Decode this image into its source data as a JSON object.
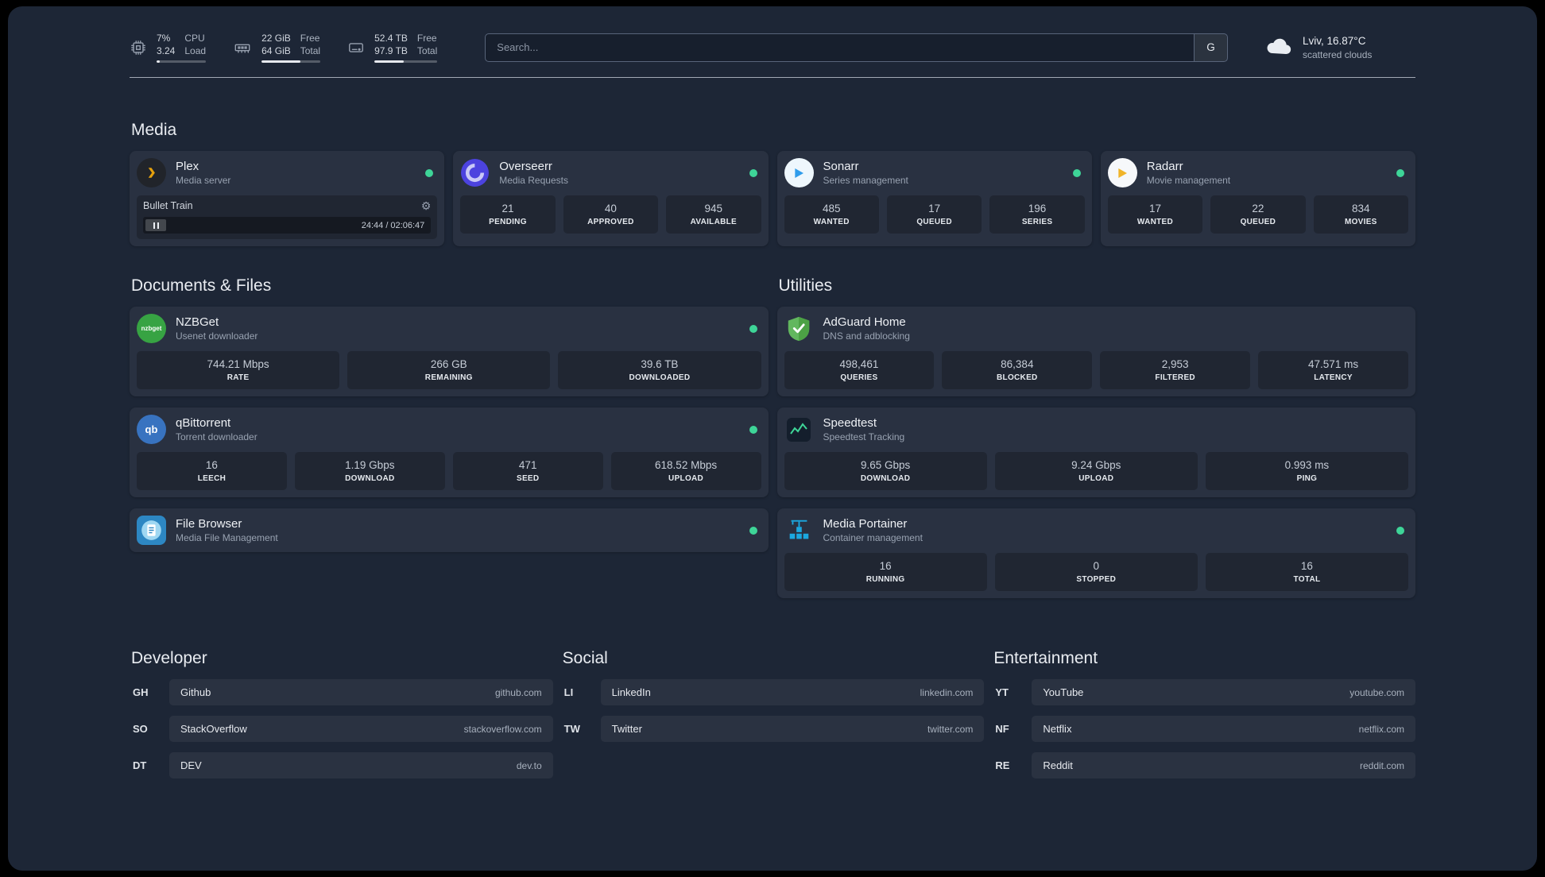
{
  "colors": {
    "status_green": "#3ed598",
    "panel_bg": "#1d2636",
    "plex_orange": "#e5a00d",
    "overseerr_purple": "#4c43df",
    "sonarr_blue": "#2f9ceb",
    "radarr_yellow": "#f0b429",
    "nzbget_green": "#37a343",
    "qbittorrent_blue": "#3873c0",
    "filebrowser_blue": "#2d87c3",
    "adguard_green": "#62b75e",
    "portainer_blue": "#1ba8e0"
  },
  "topbar": {
    "resources": [
      {
        "icon": "cpu-icon",
        "values": [
          "7%",
          "3.24"
        ],
        "labels": [
          "CPU",
          "Load"
        ],
        "progress": 7
      },
      {
        "icon": "memory-icon",
        "values": [
          "22 GiB",
          "64 GiB"
        ],
        "labels": [
          "Free",
          "Total"
        ],
        "progress": 66
      },
      {
        "icon": "disk-icon",
        "values": [
          "52.4 TB",
          "97.9 TB"
        ],
        "labels": [
          "Free",
          "Total"
        ],
        "progress": 46
      }
    ],
    "search": {
      "placeholder": "Search...",
      "button_label": "G"
    },
    "weather": {
      "location": "Lviv, 16.87°C",
      "condition": "scattered clouds"
    }
  },
  "sections": {
    "media": {
      "heading": "Media",
      "services": [
        {
          "title": "Plex",
          "subtitle": "Media server",
          "status": "online",
          "player": {
            "track": "Bullet Train",
            "time": "24:44 / 02:06:47"
          }
        },
        {
          "title": "Overseerr",
          "subtitle": "Media Requests",
          "status": "online",
          "stats": [
            {
              "value": "21",
              "label": "PENDING"
            },
            {
              "value": "40",
              "label": "APPROVED"
            },
            {
              "value": "945",
              "label": "AVAILABLE"
            }
          ]
        },
        {
          "title": "Sonarr",
          "subtitle": "Series management",
          "status": "online",
          "stats": [
            {
              "value": "485",
              "label": "WANTED"
            },
            {
              "value": "17",
              "label": "QUEUED"
            },
            {
              "value": "196",
              "label": "SERIES"
            }
          ]
        },
        {
          "title": "Radarr",
          "subtitle": "Movie management",
          "status": "online",
          "stats": [
            {
              "value": "17",
              "label": "WANTED"
            },
            {
              "value": "22",
              "label": "QUEUED"
            },
            {
              "value": "834",
              "label": "MOVIES"
            }
          ]
        }
      ]
    },
    "documents": {
      "heading": "Documents & Files",
      "services": [
        {
          "title": "NZBGet",
          "subtitle": "Usenet downloader",
          "status": "online",
          "stats": [
            {
              "value": "744.21 Mbps",
              "label": "RATE"
            },
            {
              "value": "266 GB",
              "label": "REMAINING"
            },
            {
              "value": "39.6 TB",
              "label": "DOWNLOADED"
            }
          ]
        },
        {
          "title": "qBittorrent",
          "subtitle": "Torrent downloader",
          "status": "online",
          "stats": [
            {
              "value": "16",
              "label": "LEECH"
            },
            {
              "value": "1.19 Gbps",
              "label": "DOWNLOAD"
            },
            {
              "value": "471",
              "label": "SEED"
            },
            {
              "value": "618.52 Mbps",
              "label": "UPLOAD"
            }
          ]
        },
        {
          "title": "File Browser",
          "subtitle": "Media File Management",
          "status": "online"
        }
      ]
    },
    "utilities": {
      "heading": "Utilities",
      "services": [
        {
          "title": "AdGuard Home",
          "subtitle": "DNS and adblocking",
          "stats": [
            {
              "value": "498,461",
              "label": "QUERIES"
            },
            {
              "value": "86,384",
              "label": "BLOCKED"
            },
            {
              "value": "2,953",
              "label": "FILTERED"
            },
            {
              "value": "47.571 ms",
              "label": "LATENCY"
            }
          ]
        },
        {
          "title": "Speedtest",
          "subtitle": "Speedtest Tracking",
          "stats": [
            {
              "value": "9.65 Gbps",
              "label": "DOWNLOAD"
            },
            {
              "value": "9.24 Gbps",
              "label": "UPLOAD"
            },
            {
              "value": "0.993 ms",
              "label": "PING"
            }
          ]
        },
        {
          "title": "Media Portainer",
          "subtitle": "Container management",
          "status": "online",
          "stats": [
            {
              "value": "16",
              "label": "RUNNING"
            },
            {
              "value": "0",
              "label": "STOPPED"
            },
            {
              "value": "16",
              "label": "TOTAL"
            }
          ]
        }
      ]
    }
  },
  "bookmarks": {
    "developer": {
      "heading": "Developer",
      "items": [
        {
          "abbr": "GH",
          "name": "Github",
          "url": "github.com"
        },
        {
          "abbr": "SO",
          "name": "StackOverflow",
          "url": "stackoverflow.com"
        },
        {
          "abbr": "DT",
          "name": "DEV",
          "url": "dev.to"
        }
      ]
    },
    "social": {
      "heading": "Social",
      "items": [
        {
          "abbr": "LI",
          "name": "LinkedIn",
          "url": "linkedin.com"
        },
        {
          "abbr": "TW",
          "name": "Twitter",
          "url": "twitter.com"
        }
      ]
    },
    "entertainment": {
      "heading": "Entertainment",
      "items": [
        {
          "abbr": "YT",
          "name": "YouTube",
          "url": "youtube.com"
        },
        {
          "abbr": "NF",
          "name": "Netflix",
          "url": "netflix.com"
        },
        {
          "abbr": "RE",
          "name": "Reddit",
          "url": "reddit.com"
        }
      ]
    }
  }
}
